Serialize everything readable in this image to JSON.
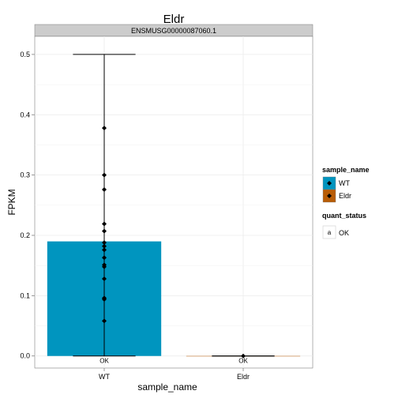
{
  "chart_data": {
    "type": "bar",
    "title": "Eldr",
    "facet_label": "ENSMUSG00000087060.1",
    "xlabel": "sample_name",
    "ylabel": "FPKM",
    "categories": [
      "WT",
      "Eldr"
    ],
    "values": [
      0.19,
      0.0
    ],
    "error_bars": [
      {
        "category": "WT",
        "low": 0.0,
        "high": 0.5
      },
      {
        "category": "Eldr",
        "low": 0.0,
        "high": 0.0
      }
    ],
    "points": [
      {
        "category": "WT",
        "y": 0.378
      },
      {
        "category": "WT",
        "y": 0.3
      },
      {
        "category": "WT",
        "y": 0.276
      },
      {
        "category": "WT",
        "y": 0.219
      },
      {
        "category": "WT",
        "y": 0.207
      },
      {
        "category": "WT",
        "y": 0.188
      },
      {
        "category": "WT",
        "y": 0.182
      },
      {
        "category": "WT",
        "y": 0.176
      },
      {
        "category": "WT",
        "y": 0.163
      },
      {
        "category": "WT",
        "y": 0.151
      },
      {
        "category": "WT",
        "y": 0.148
      },
      {
        "category": "WT",
        "y": 0.128
      },
      {
        "category": "WT",
        "y": 0.096
      },
      {
        "category": "WT",
        "y": 0.094
      },
      {
        "category": "WT",
        "y": 0.058
      },
      {
        "category": "Eldr",
        "y": 0.0
      }
    ],
    "bar_labels": [
      "OK",
      "OK"
    ],
    "ylim": [
      -0.02,
      0.53
    ],
    "yticks": [
      "0.0",
      "0.1",
      "0.2",
      "0.3",
      "0.4",
      "0.5"
    ],
    "ytick_values": [
      0.0,
      0.1,
      0.2,
      0.3,
      0.4,
      0.5
    ],
    "grid": true,
    "legend_position": "right",
    "legend": {
      "fill_title": "sample_name",
      "fill_items": [
        {
          "label": "WT",
          "color": "#0095BF"
        },
        {
          "label": "Eldr",
          "color": "#B85C05"
        }
      ],
      "label_title": "quant_status",
      "label_items": [
        {
          "key": "a",
          "label": "OK"
        }
      ]
    }
  },
  "colors": {
    "panel_background": "#ffffff",
    "strip_background": "#cccccc",
    "grid_color": "#ebebeb",
    "wt_fill": "#0095BF",
    "eldr_fill": "#B85C05"
  }
}
